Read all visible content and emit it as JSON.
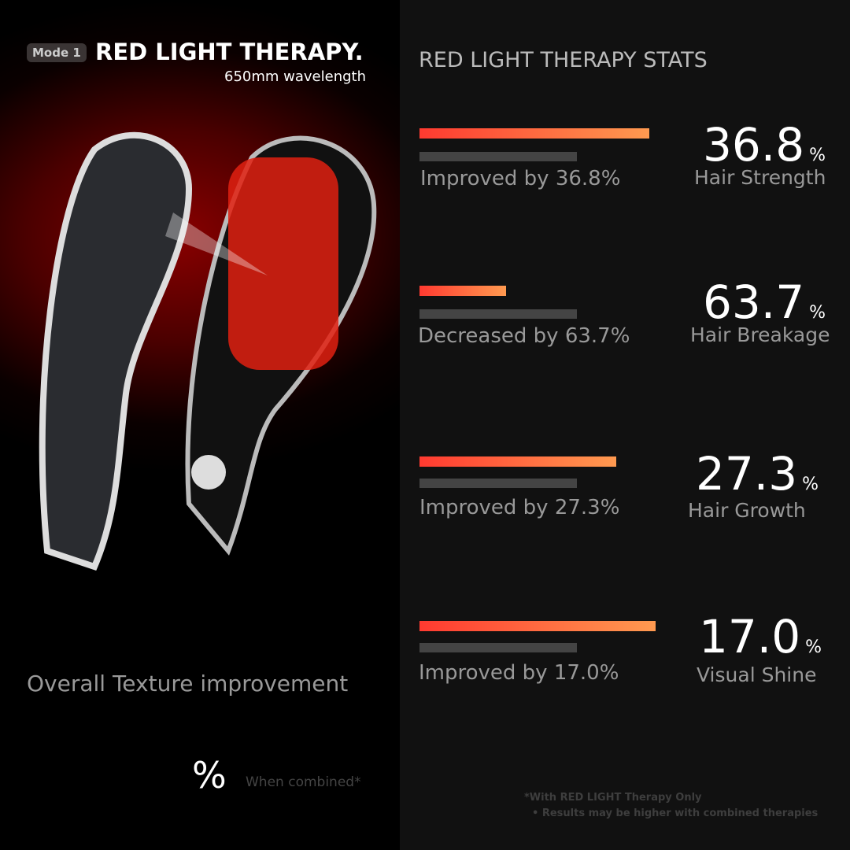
{
  "header": {
    "mode": "Mode 1",
    "title": "RED LIGHT THERAPY.",
    "subtitle": "650mm wavelength"
  },
  "stats_title": "RED LIGHT THERAPY STATS",
  "stats": [
    {
      "caption": "Improved by 36.8%",
      "value": "36.8",
      "unit": "%",
      "label": "Hair Strength"
    },
    {
      "caption": "Decreased by 63.7%",
      "value": "63.7",
      "unit": "%",
      "label": "Hair Breakage"
    },
    {
      "caption": "Improved by 27.3%",
      "value": "27.3",
      "unit": "%",
      "label": "Hair Growth"
    },
    {
      "caption": "Improved by 17.0%",
      "value": "17.0",
      "unit": "%",
      "label": "Visual Shine"
    }
  ],
  "overall": {
    "title": "Overall Texture improvement",
    "unit": "%",
    "note": "When combined*"
  },
  "footnotes": [
    "*With RED LIGHT Therapy Only",
    "Results may be higher with combined therapies"
  ]
}
